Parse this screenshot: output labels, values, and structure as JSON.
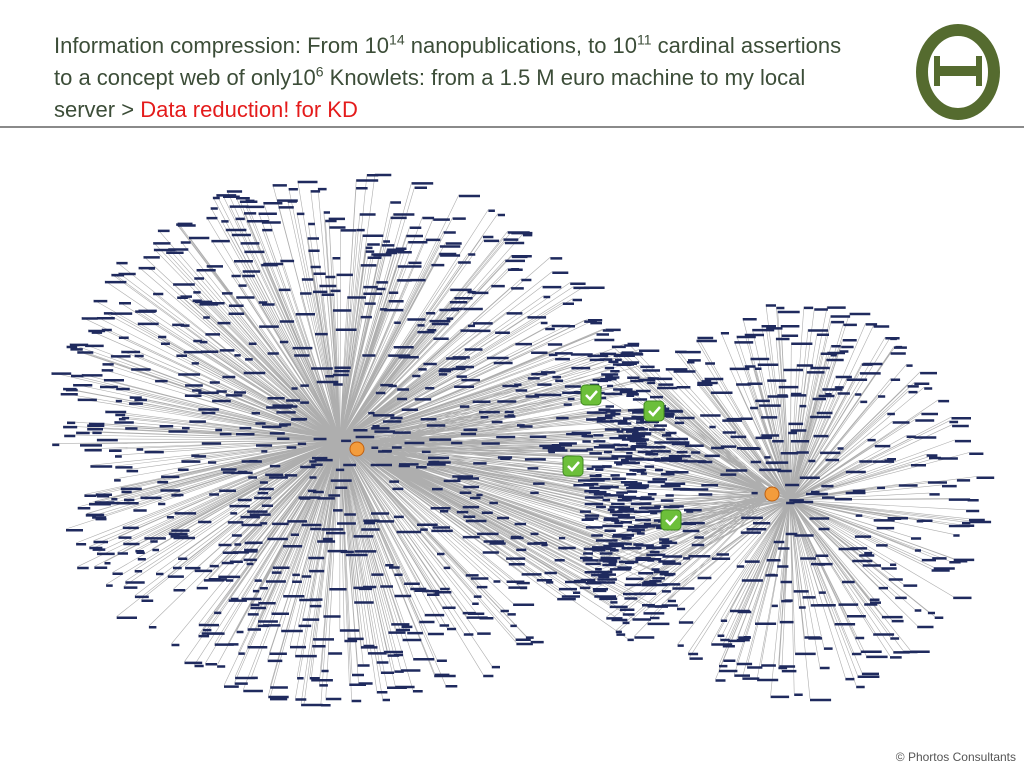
{
  "header": {
    "title": {
      "parts": [
        {
          "text": "Information compression: From 10"
        },
        {
          "text": "14",
          "sup": true
        },
        {
          "text": " nanopublications, to 10"
        },
        {
          "text": "11",
          "sup": true
        },
        {
          "text": " cardinal assertions to a concept web of only10"
        },
        {
          "text": "6",
          "sup": true
        },
        {
          "text": " Knowlets: from a 1.5 M euro machine to my local server > "
        },
        {
          "text": "Data reduction! for KD",
          "highlight": true
        }
      ]
    }
  },
  "footer": {
    "copyright": "© Phortos Consultants"
  }
}
